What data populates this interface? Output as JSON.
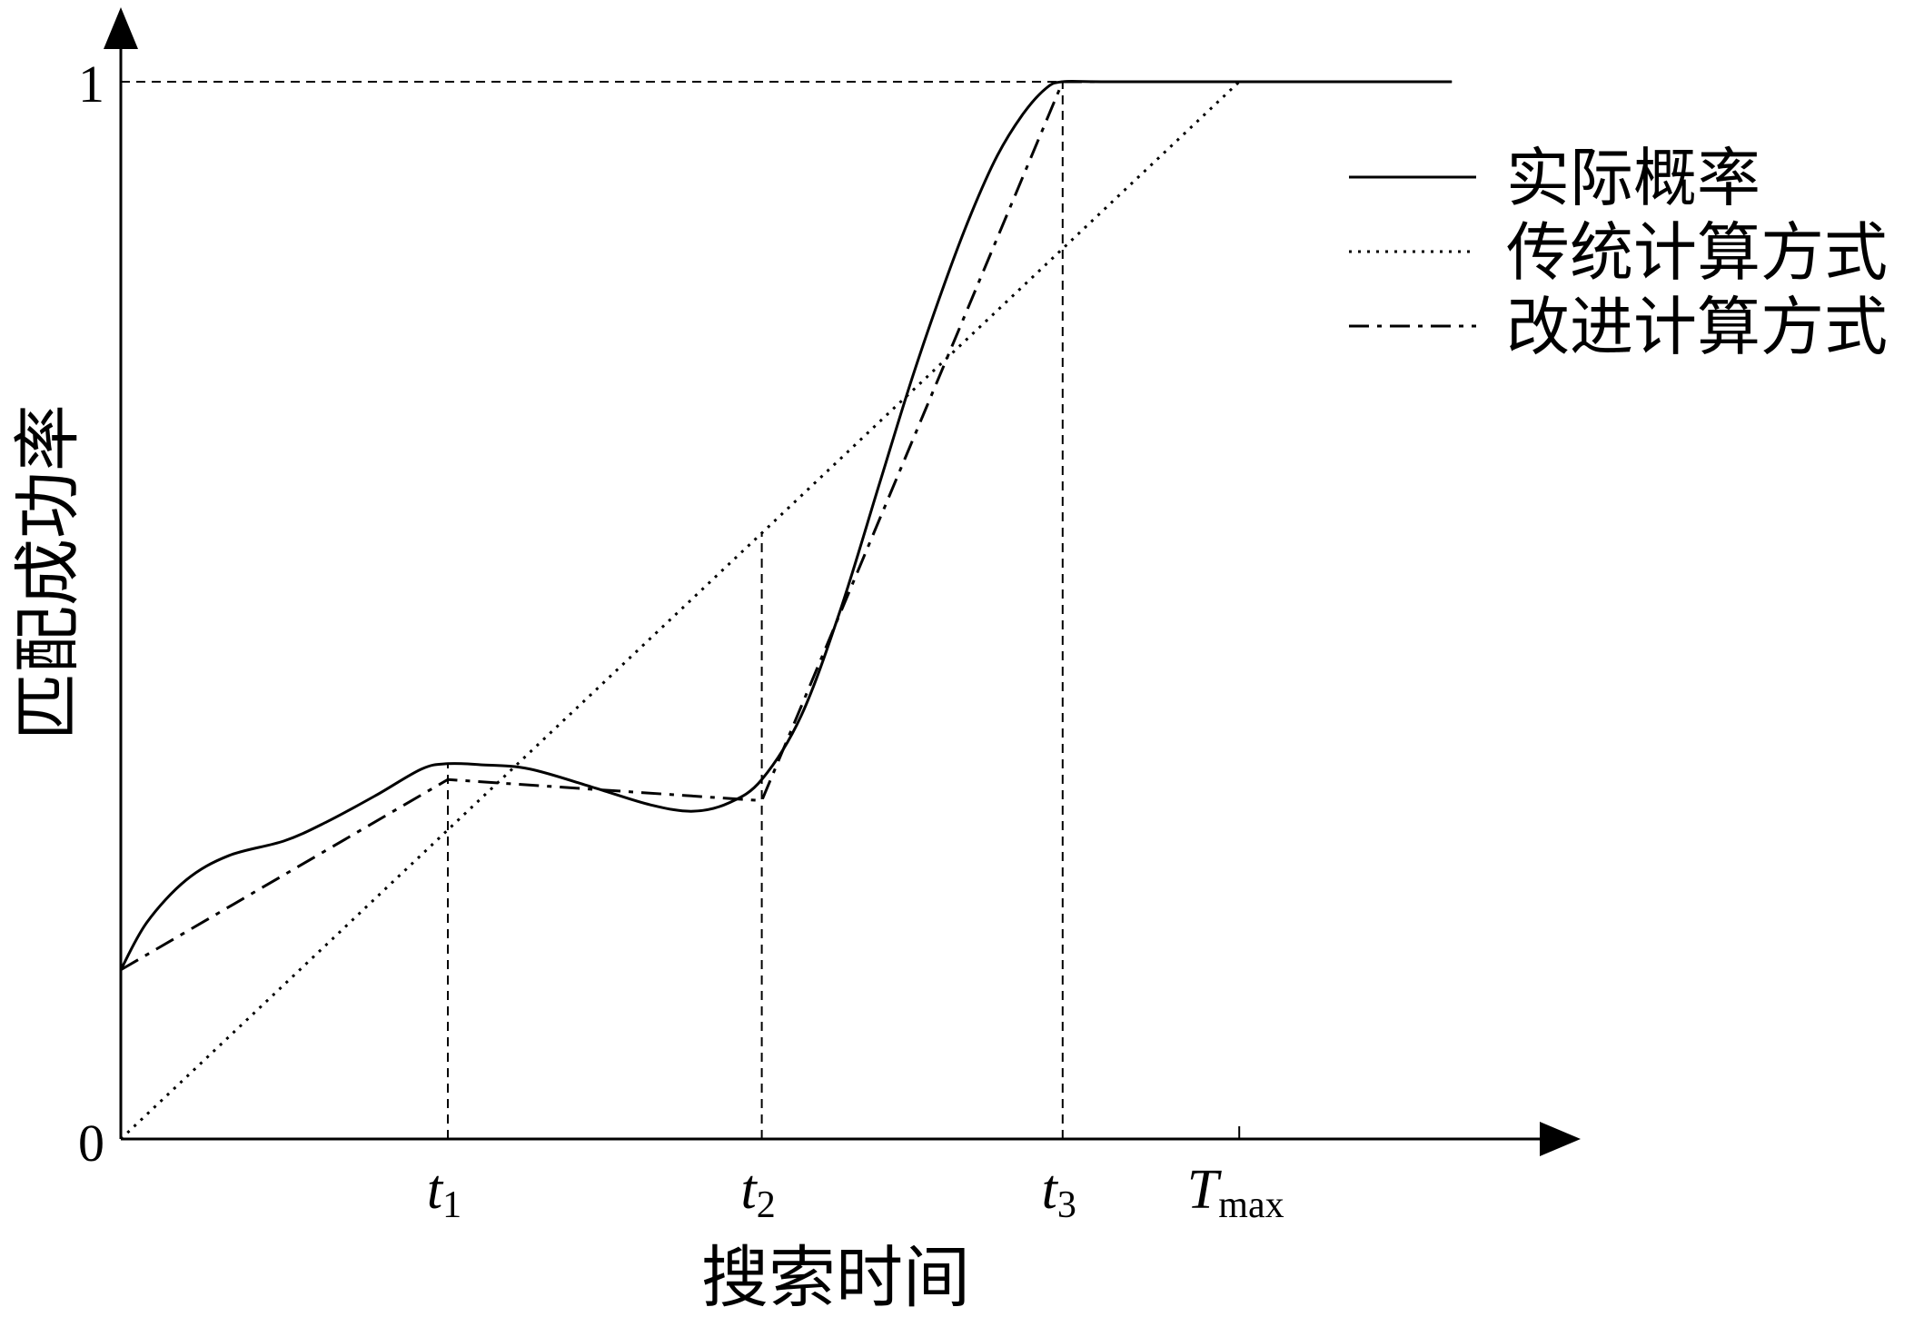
{
  "chart_data": {
    "type": "line",
    "title": "",
    "xlabel": "搜索时间",
    "ylabel": "匹配成功率",
    "ylim": [
      0,
      1
    ],
    "y_ticks": [
      "0",
      "1"
    ],
    "x_ticks": [
      {
        "base": "t",
        "sub": "1",
        "value": 1.0
      },
      {
        "base": "t",
        "sub": "2",
        "value": 1.96
      },
      {
        "base": "t",
        "sub": "3",
        "value": 2.88
      },
      {
        "base": "T",
        "sub": "max",
        "value": 3.42
      }
    ],
    "xlim": [
      0,
      4.1
    ],
    "legend_position": "top-right",
    "series": [
      {
        "name": "实际概率",
        "style": "solid",
        "x": [
          0,
          0.08,
          0.2,
          0.33,
          0.5,
          0.63,
          0.78,
          0.92,
          1.0,
          1.1,
          1.25,
          1.45,
          1.62,
          1.75,
          1.86,
          1.96,
          2.08,
          2.2,
          2.32,
          2.42,
          2.52,
          2.6,
          2.68,
          2.76,
          2.83,
          2.88,
          3.0,
          3.4,
          4.07
        ],
        "y": [
          0.16,
          0.205,
          0.245,
          0.268,
          0.282,
          0.3,
          0.325,
          0.35,
          0.355,
          0.354,
          0.35,
          0.332,
          0.316,
          0.31,
          0.318,
          0.34,
          0.4,
          0.5,
          0.62,
          0.72,
          0.81,
          0.875,
          0.93,
          0.97,
          0.994,
          1.0,
          1.0,
          1.0,
          1.0
        ]
      },
      {
        "name": "传统计算方式",
        "style": "dotted",
        "x": [
          0,
          3.42,
          4.07
        ],
        "y": [
          0,
          1.0,
          1.0
        ]
      },
      {
        "name": "改进计算方式",
        "style": "dashdot",
        "x": [
          0,
          1.0,
          1.96,
          2.88,
          4.07
        ],
        "y": [
          0.16,
          0.34,
          0.32,
          1.0,
          1.0
        ]
      }
    ]
  }
}
